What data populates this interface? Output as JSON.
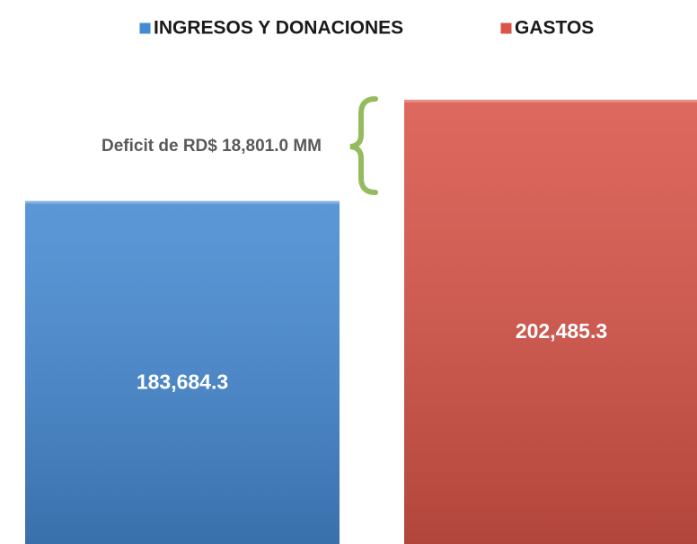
{
  "chart_data": {
    "type": "bar",
    "categories": [
      null
    ],
    "series": [
      {
        "name": "INGRESOS Y DONACIONES",
        "color": "#4589d2",
        "values": [
          183684.3
        ],
        "value_labels": [
          "183,684.3"
        ]
      },
      {
        "name": "GASTOS",
        "color": "#d95448",
        "values": [
          202485.3
        ],
        "value_labels": [
          "202,485.3"
        ]
      }
    ],
    "ylim": [
      120000,
      221000
    ],
    "annotations": [
      "Deficit de RD$ 18,801.0 MM"
    ],
    "legend": "top"
  }
}
